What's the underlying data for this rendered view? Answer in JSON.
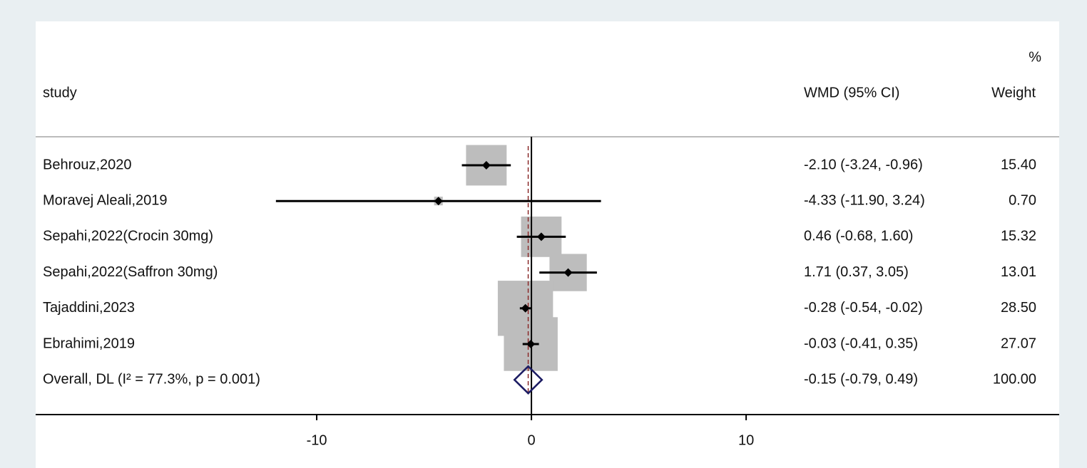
{
  "chart_data": {
    "type": "forest",
    "headers": {
      "study": "study",
      "effect": "WMD (95% CI)",
      "weight_top": "%",
      "weight": "Weight"
    },
    "studies": [
      "Behrouz,2020",
      "Moravej Aleali,2019",
      "Sepahi,2022(Crocin 30mg)",
      "Sepahi,2022(Saffron 30mg)",
      "Tajaddini,2023",
      "Ebrahimi,2019"
    ],
    "values": [
      -2.1,
      -4.33,
      0.46,
      1.71,
      -0.28,
      -0.03
    ],
    "lower": [
      -3.24,
      -11.9,
      -0.68,
      0.37,
      -0.54,
      -0.41
    ],
    "upper": [
      -0.96,
      3.24,
      1.6,
      3.05,
      -0.02,
      0.35
    ],
    "ci_labels": [
      "-2.10 (-3.24, -0.96)",
      "-4.33 (-11.90, 3.24)",
      "0.46 (-0.68, 1.60)",
      "1.71 (0.37, 3.05)",
      "-0.28 (-0.54, -0.02)",
      "-0.03 (-0.41, 0.35)"
    ],
    "weights": [
      15.4,
      0.7,
      15.32,
      13.01,
      28.5,
      27.07
    ],
    "weight_labels": [
      "15.40",
      "0.70",
      "15.32",
      "13.01",
      "28.50",
      "27.07"
    ],
    "overall": {
      "label": "Overall, DL (I² = 77.3%, p = 0.001)",
      "value": -0.15,
      "lower": -0.79,
      "upper": 0.49,
      "ci_label": "-0.15 (-0.79, 0.49)",
      "weight": 100,
      "weight_label": "100.00"
    },
    "xlim": [
      -23.09,
      24.58
    ],
    "xticks": [
      -10,
      0,
      10
    ],
    "null_line": 0,
    "box_color": "#bdbdbd",
    "marker_color": "#000000",
    "diamond_color": "#1c1c63",
    "ref_line_color": "#8b2a2a"
  }
}
